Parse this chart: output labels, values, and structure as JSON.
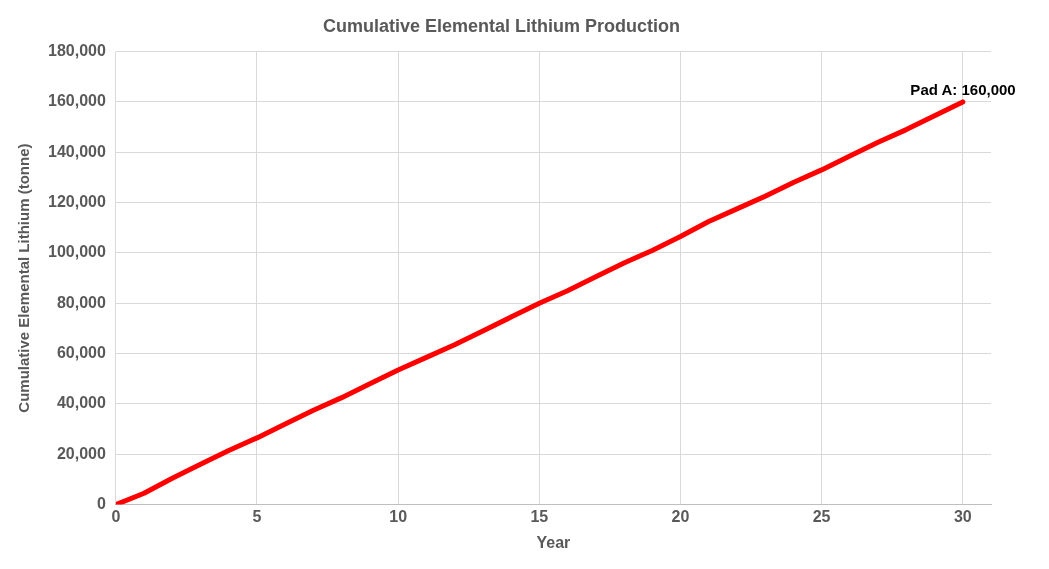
{
  "chart_data": {
    "type": "line",
    "title": "Cumulative Elemental Lithium Production",
    "xlabel": "Year",
    "ylabel": "Cumulative Elemental Lithium (tonne)",
    "x": [
      0,
      1,
      2,
      3,
      4,
      5,
      6,
      7,
      8,
      9,
      10,
      11,
      12,
      13,
      14,
      15,
      16,
      17,
      18,
      19,
      20,
      21,
      22,
      23,
      24,
      25,
      26,
      27,
      28,
      29,
      30
    ],
    "series": [
      {
        "color": "#ff0000",
        "values": [
          0,
          4500,
          10500,
          16000,
          21500,
          26500,
          32000,
          37500,
          42500,
          48000,
          53500,
          58500,
          63500,
          69000,
          74500,
          80000,
          85000,
          90500,
          96000,
          101000,
          106500,
          112500,
          117500,
          122500,
          128000,
          133000,
          138500,
          144000,
          149000,
          154500,
          160000
        ]
      }
    ],
    "xlim": [
      0,
      31
    ],
    "xticks": [
      0,
      5,
      10,
      15,
      20,
      25,
      30
    ],
    "ylim": [
      0,
      180000
    ],
    "yticks": [
      0,
      {
        "value": 20000,
        "label": "20,000"
      },
      {
        "value": 40000,
        "label": "40,000"
      },
      {
        "value": 60000,
        "label": "60,000"
      },
      {
        "value": 80000,
        "label": "80,000"
      },
      {
        "value": 100000,
        "label": "100,000"
      },
      {
        "value": 120000,
        "label": "120,000"
      },
      {
        "value": 140000,
        "label": "140,000"
      },
      {
        "value": 160000,
        "label": "160,000"
      },
      {
        "value": 180000,
        "label": "180,000"
      }
    ],
    "grid": true,
    "legend": false,
    "marker": "none",
    "line_style": "solid",
    "annotations": [
      {
        "text": "Pad A: 160,000",
        "x": 30,
        "y": 160000
      }
    ]
  }
}
